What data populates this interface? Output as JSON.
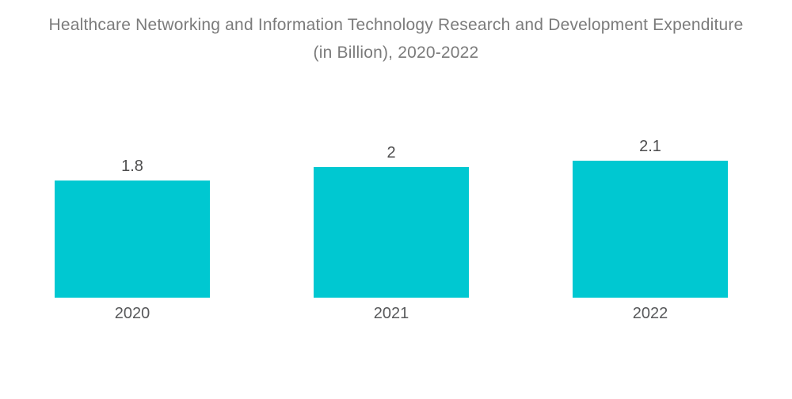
{
  "title": "Healthcare Networking and Information Technology Research and Development Expenditure (in Billion), 2020-2022",
  "chart_data": {
    "type": "bar",
    "title": "Healthcare Networking and Information Technology Research and Development Expenditure (in Billion), 2020-2022",
    "categories": [
      "2020",
      "2021",
      "2022"
    ],
    "values": [
      1.8,
      2,
      2.1
    ],
    "value_labels": [
      "1.8",
      "2",
      "2.1"
    ],
    "xlabel": "",
    "ylabel": "",
    "ylim": [
      0,
      2.5
    ],
    "grid": false,
    "legend": "none",
    "axes_visible": false,
    "bar_color": "#00C8D1",
    "title_color": "#7b7b7b",
    "label_color": "#4d4d4e"
  }
}
